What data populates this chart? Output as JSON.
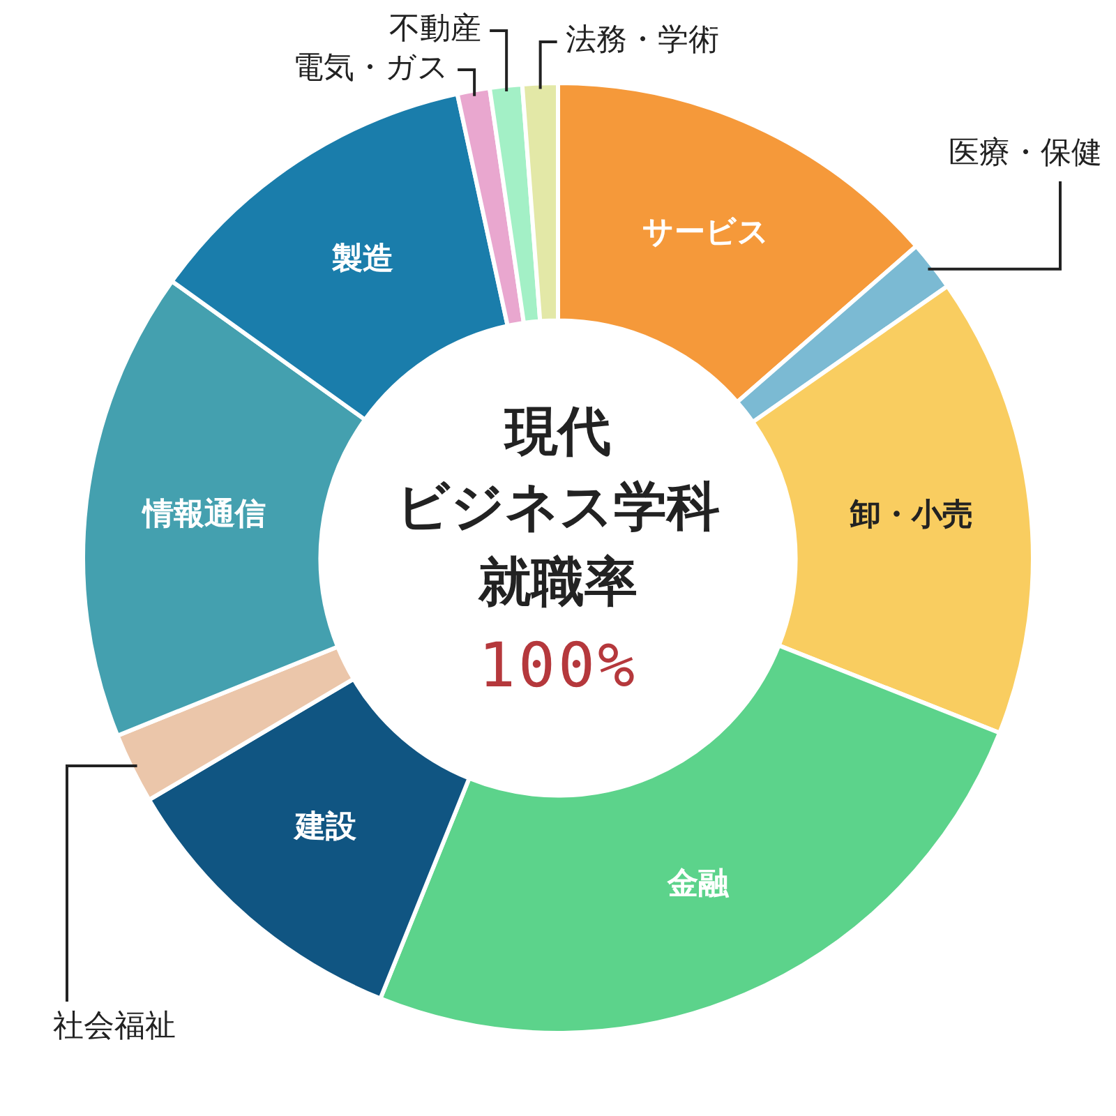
{
  "chart_data": {
    "type": "donut",
    "title": "現代",
    "subtitle": "ビジネス学科",
    "annotations": [
      "就職率",
      "100%"
    ],
    "categories": [
      "サービス",
      "医療・保健",
      "卸・小売",
      "金融",
      "建設",
      "社会福祉",
      "情報通信",
      "製造",
      "電気・ガス",
      "不動産",
      "法務・学術"
    ],
    "values": [
      13.6,
      1.7,
      15.7,
      25.1,
      10.4,
      2.4,
      16.0,
      11.7,
      1.1,
      1.1,
      1.2
    ],
    "colors": [
      "#f5993a",
      "#7bbad3",
      "#f9cd60",
      "#5cd38b",
      "#105582",
      "#ebc6aa",
      "#44a0af",
      "#1a7dab",
      "#e9a7cf",
      "#a3f0c6",
      "#e3e8a7"
    ],
    "legend": false
  }
}
